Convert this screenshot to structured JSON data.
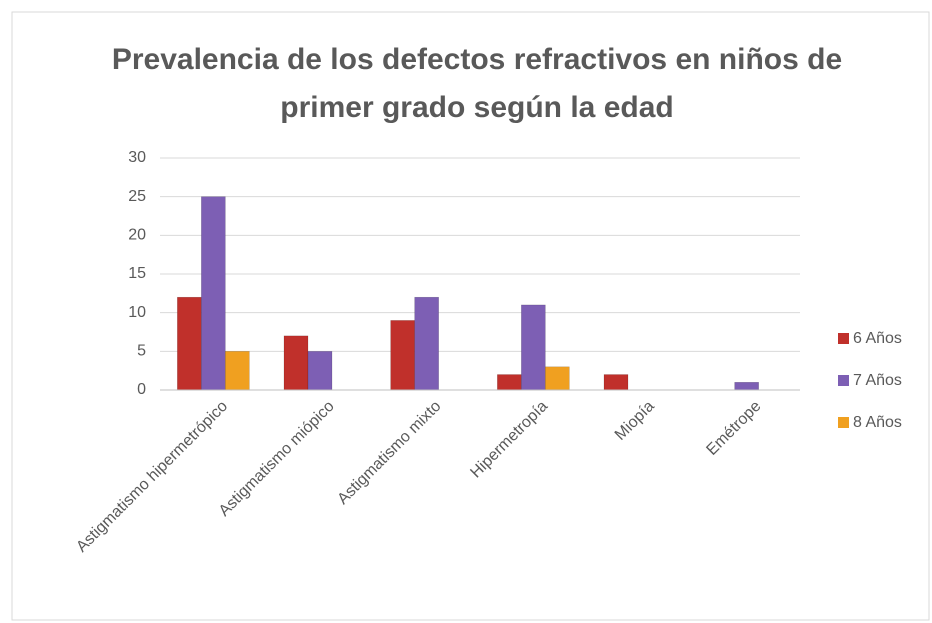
{
  "chart_data": {
    "type": "bar",
    "title": "Prevalencia de los defectos refractivos en niños de primer grado según la edad",
    "categories": [
      "Astigmatismo hipermetrópico",
      "Astigmatismo miópico",
      "Astigmatismo mixto",
      "Hipermetropía",
      "Miopía",
      "Emétrope"
    ],
    "series": [
      {
        "name": "6 Años",
        "color": "#c0302b",
        "values": [
          12,
          7,
          9,
          2,
          2,
          0
        ]
      },
      {
        "name": "7 Años",
        "color": "#7d5fb4",
        "values": [
          25,
          5,
          12,
          11,
          0,
          1
        ]
      },
      {
        "name": "8 Años",
        "color": "#f0a020",
        "values": [
          5,
          0,
          0,
          3,
          0,
          0
        ]
      }
    ],
    "ylim": [
      0,
      30
    ],
    "yticks": [
      0,
      5,
      10,
      15,
      20,
      25,
      30
    ],
    "grid": true,
    "legend": "right"
  }
}
